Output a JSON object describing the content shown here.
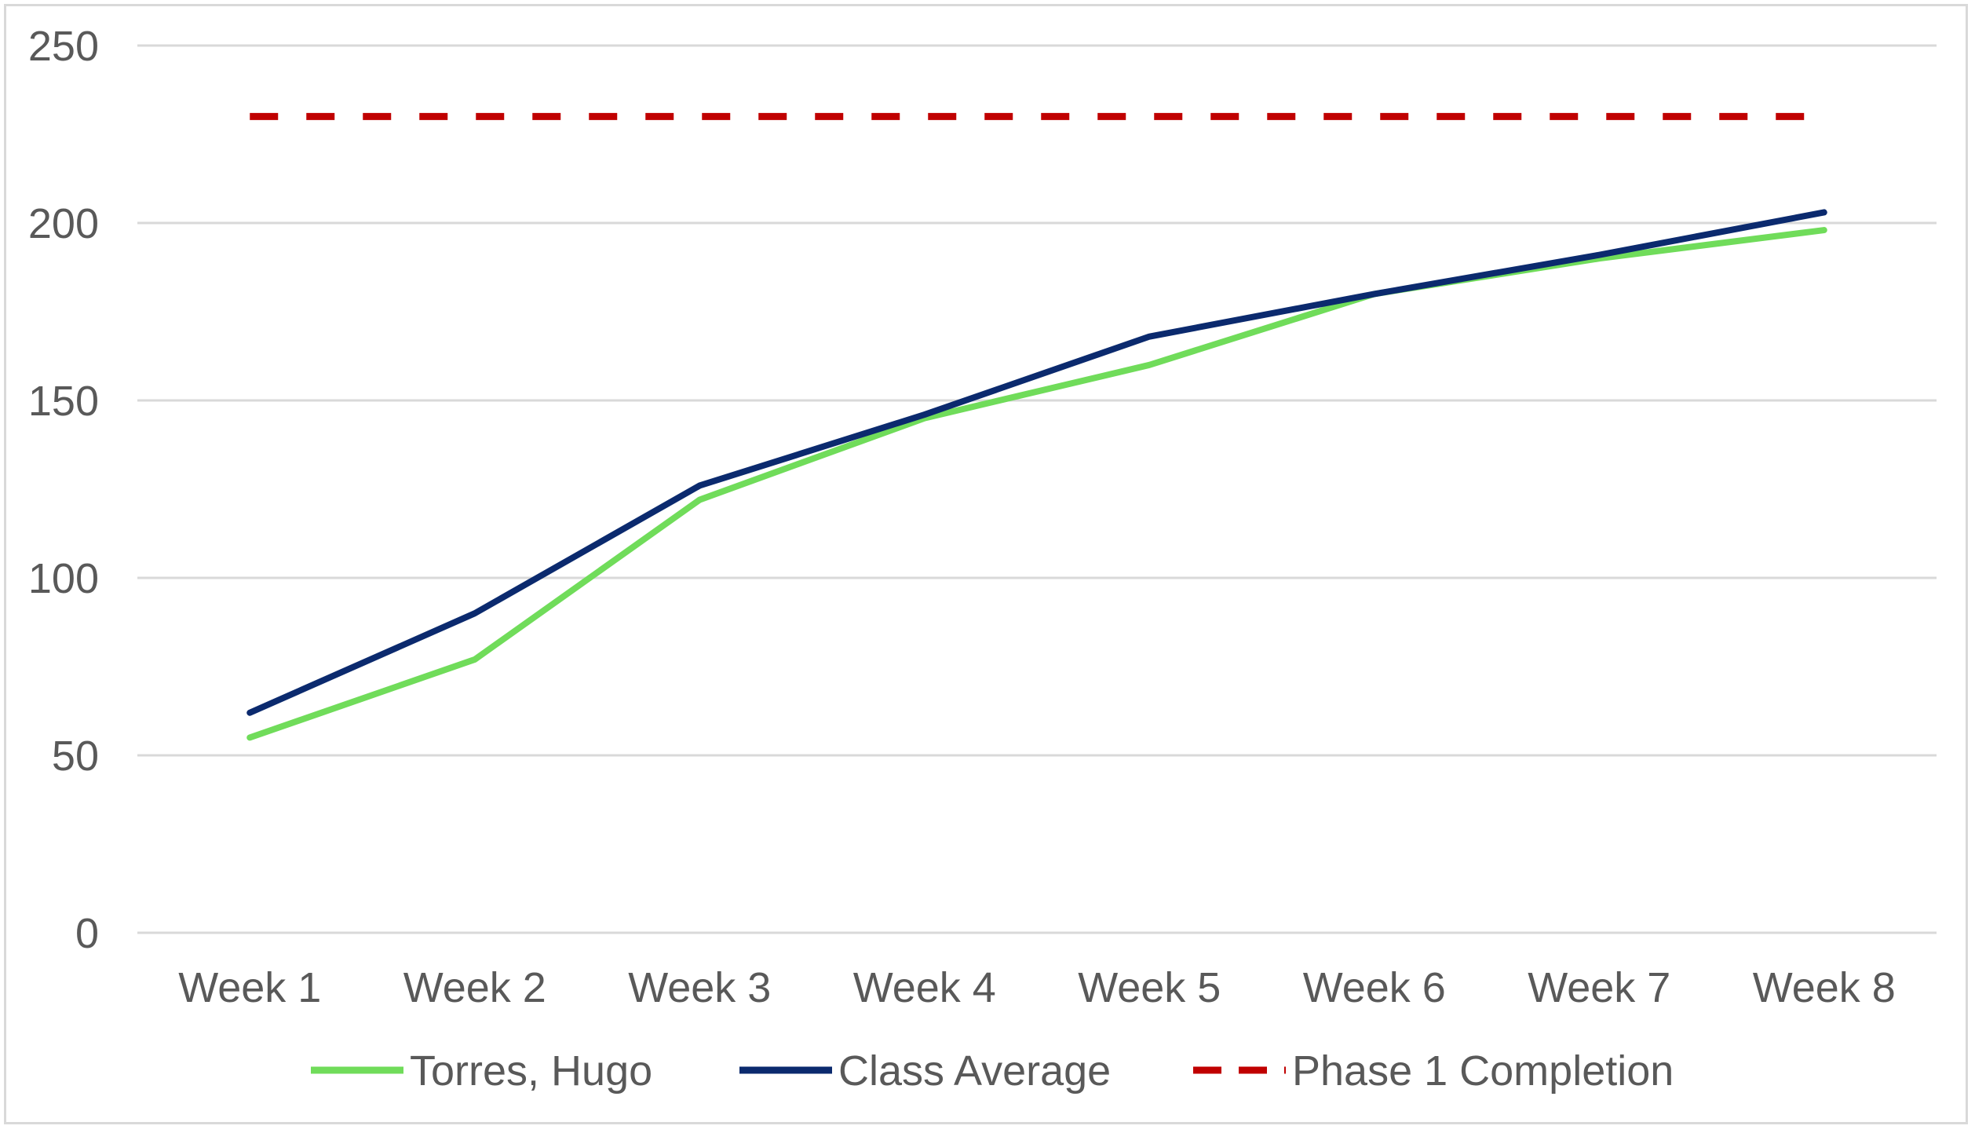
{
  "chart_data": {
    "type": "line",
    "title": "",
    "xlabel": "",
    "ylabel": "",
    "categories": [
      "Week 1",
      "Week 2",
      "Week 3",
      "Week 4",
      "Week 5",
      "Week 6",
      "Week 7",
      "Week 8"
    ],
    "ylim": [
      0,
      250
    ],
    "yticks": [
      0,
      50,
      100,
      150,
      200,
      250
    ],
    "grid": true,
    "legend_position": "bottom",
    "series": [
      {
        "name": "Torres, Hugo",
        "values": [
          55,
          77,
          122,
          145,
          160,
          180,
          190,
          198
        ],
        "color": "#70dc5a",
        "style": "solid"
      },
      {
        "name": "Class Average",
        "values": [
          62,
          90,
          126,
          146,
          168,
          180,
          191,
          203
        ],
        "color": "#0b2a6e",
        "style": "solid"
      },
      {
        "name": "Phase 1 Completion",
        "values": [
          230,
          230,
          230,
          230,
          230,
          230,
          230,
          230
        ],
        "color": "#c00000",
        "style": "dashed"
      }
    ]
  }
}
